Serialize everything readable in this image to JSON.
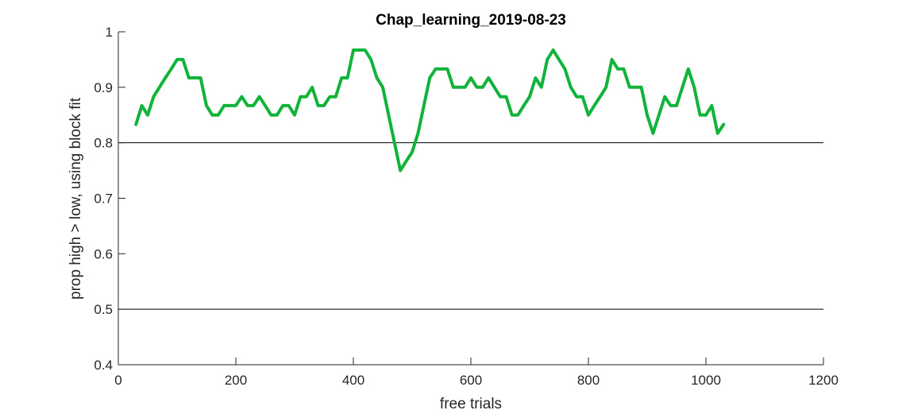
{
  "chart_data": {
    "type": "line",
    "title": "Chap_learning_2019-08-23",
    "xlabel": "free trials",
    "ylabel": "prop high > low, using block fit",
    "xlim": [
      0,
      1200
    ],
    "ylim": [
      0.4,
      1
    ],
    "xticks": [
      0,
      200,
      400,
      600,
      800,
      1000,
      1200
    ],
    "xtick_labels": [
      "0",
      "200",
      "400",
      "600",
      "800",
      "1000",
      "1200"
    ],
    "yticks": [
      0.4,
      0.5,
      0.6,
      0.7,
      0.8,
      0.9,
      1
    ],
    "ytick_labels": [
      "0.4",
      "0.5",
      "0.6",
      "0.7",
      "0.8",
      "0.9",
      "1"
    ],
    "reference_lines": [
      0.5,
      0.8
    ],
    "grid": false,
    "series": [
      {
        "color": "#12b33a",
        "x": [
          30,
          40,
          50,
          60,
          70,
          80,
          90,
          100,
          110,
          120,
          130,
          140,
          150,
          160,
          170,
          180,
          190,
          200,
          210,
          220,
          230,
          240,
          250,
          260,
          270,
          280,
          290,
          300,
          310,
          320,
          330,
          340,
          350,
          360,
          370,
          380,
          390,
          400,
          410,
          420,
          430,
          440,
          450,
          460,
          470,
          480,
          490,
          500,
          510,
          520,
          530,
          540,
          550,
          560,
          570,
          580,
          590,
          600,
          610,
          620,
          630,
          640,
          650,
          660,
          670,
          680,
          690,
          700,
          710,
          720,
          730,
          740,
          750,
          760,
          770,
          780,
          790,
          800,
          810,
          820,
          830,
          840,
          850,
          860,
          870,
          880,
          890,
          900,
          910,
          920,
          930,
          940,
          950,
          960,
          970,
          980,
          990,
          1000,
          1010,
          1020,
          1030
        ],
        "y": [
          0.833,
          0.867,
          0.85,
          0.883,
          0.9,
          0.917,
          0.933,
          0.95,
          0.95,
          0.917,
          0.917,
          0.917,
          0.867,
          0.85,
          0.85,
          0.867,
          0.867,
          0.867,
          0.883,
          0.867,
          0.867,
          0.883,
          0.867,
          0.85,
          0.85,
          0.867,
          0.867,
          0.85,
          0.883,
          0.883,
          0.9,
          0.867,
          0.867,
          0.883,
          0.883,
          0.917,
          0.917,
          0.967,
          0.967,
          0.967,
          0.95,
          0.917,
          0.9,
          0.85,
          0.8,
          0.75,
          0.767,
          0.783,
          0.817,
          0.867,
          0.917,
          0.933,
          0.933,
          0.933,
          0.9,
          0.9,
          0.9,
          0.917,
          0.9,
          0.9,
          0.917,
          0.9,
          0.883,
          0.883,
          0.85,
          0.85,
          0.867,
          0.883,
          0.917,
          0.9,
          0.95,
          0.967,
          0.95,
          0.933,
          0.9,
          0.883,
          0.883,
          0.85,
          0.867,
          0.883,
          0.9,
          0.95,
          0.933,
          0.933,
          0.9,
          0.9,
          0.9,
          0.85,
          0.817,
          0.85,
          0.883,
          0.867,
          0.867,
          0.9,
          0.933,
          0.9,
          0.85,
          0.85,
          0.867,
          0.817,
          0.833
        ]
      }
    ]
  }
}
